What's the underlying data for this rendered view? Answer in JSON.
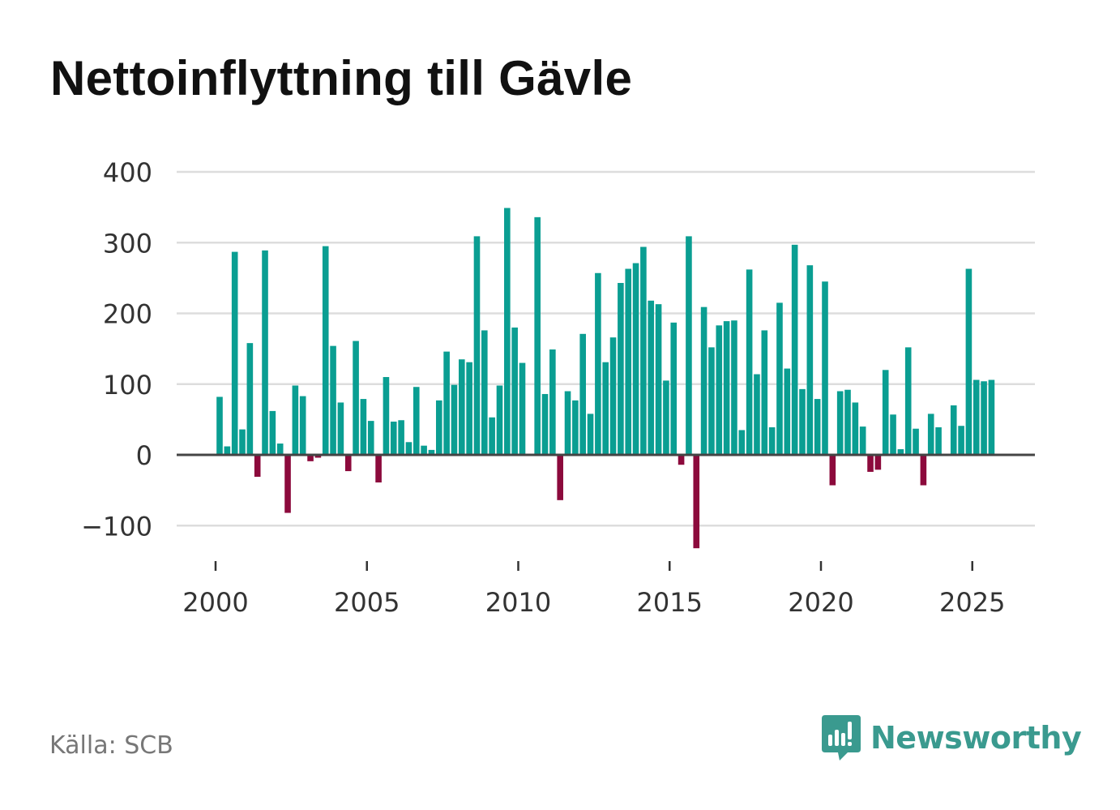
{
  "title": "Nettoinflyttning till Gävle",
  "source": "Källa: SCB",
  "brand": "Newsworthy",
  "colors": {
    "positive": "#0a9e92",
    "negative": "#8c0a3c",
    "grid": "#dddddd",
    "zero": "#444444",
    "brand": "#3a9a8f"
  },
  "chart_data": {
    "type": "bar",
    "title": "Nettoinflyttning till Gävle",
    "xlabel": "",
    "ylabel": "",
    "ylim": [
      -130,
      400
    ],
    "xlim": [
      1998.7,
      2027.2
    ],
    "yticks": [
      400,
      300,
      200,
      100,
      0,
      -100
    ],
    "ytick_labels": [
      "400",
      "300",
      "200",
      "100",
      "0",
      "−100"
    ],
    "xticks": [
      2000,
      2005,
      2010,
      2015,
      2020,
      2025
    ],
    "xtick_labels": [
      "2000",
      "2005",
      "2010",
      "2015",
      "2020",
      "2025"
    ],
    "frequency": "quarterly",
    "start": "2000 Q1",
    "values": [
      82,
      12,
      287,
      36,
      158,
      -31,
      289,
      62,
      16,
      -82,
      98,
      83,
      -9,
      -4,
      295,
      154,
      74,
      -23,
      161,
      79,
      48,
      -39,
      110,
      47,
      49,
      18,
      96,
      13,
      7,
      77,
      146,
      99,
      135,
      131,
      309,
      176,
      53,
      98,
      349,
      180,
      130,
      0,
      336,
      86,
      149,
      -64,
      90,
      77,
      171,
      58,
      257,
      131,
      166,
      243,
      263,
      271,
      294,
      218,
      213,
      105,
      187,
      -14,
      309,
      -132,
      209,
      152,
      183,
      189,
      190,
      35,
      262,
      114,
      176,
      39,
      215,
      122,
      297,
      93,
      268,
      79,
      245,
      -43,
      90,
      92,
      74,
      40,
      -24,
      -21,
      120,
      57,
      8,
      152,
      37,
      -43,
      58,
      39,
      0,
      70,
      41,
      263,
      106,
      104,
      106
    ]
  }
}
